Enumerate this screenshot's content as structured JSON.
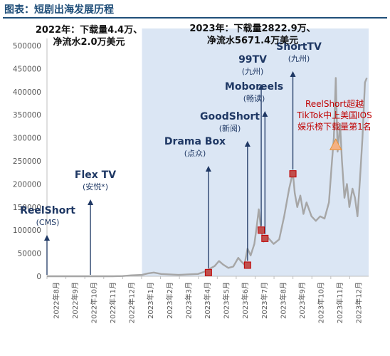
{
  "figure": {
    "title": "图表：短剧出海发展历程"
  },
  "year_notes": [
    {
      "id": "y2022",
      "lines": [
        "2022年：下载量4.4万、",
        "净流水2.0万美元"
      ]
    },
    {
      "id": "y2023",
      "lines": [
        "2023年：下载量2822.9万、",
        "净流水5671.4万美元"
      ]
    }
  ],
  "colors": {
    "shade_2023": "#dbe6f4",
    "line": "#a6a6a6",
    "arrow": "#1f3864",
    "marker": "#c00000",
    "marker_fill": "#c0504d",
    "peak_marker": "#f4b183",
    "title": "#1f4e79",
    "red_text": "#c00000"
  },
  "chart_data": {
    "type": "line",
    "title": "",
    "xlabel": "",
    "ylabel": "",
    "ylim": [
      0,
      500000
    ],
    "yticks": [
      0,
      50000,
      100000,
      150000,
      200000,
      250000,
      300000,
      350000,
      400000,
      450000,
      500000
    ],
    "xticks": [
      "2022年8月",
      "2022年9月",
      "2022年10月",
      "2022年11月",
      "2022年12月",
      "2023年1月",
      "2023年2月",
      "2023年3月",
      "2023年4月",
      "2023年5月",
      "2023年6月",
      "2023年7月",
      "2023年8月",
      "2023年9月",
      "2023年10月",
      "2023年11月",
      "2023年12月"
    ],
    "grid": false,
    "shaded_period": {
      "start": "2023年1月",
      "end": "2023年12月末",
      "meaning": "2023"
    },
    "series": [
      {
        "values": [
          {
            "x": "2022-08-01",
            "y": 0
          },
          {
            "x": "2022-08-15",
            "y": 0
          },
          {
            "x": "2022-09-01",
            "y": 0
          },
          {
            "x": "2022-09-15",
            "y": 0
          },
          {
            "x": "2022-10-01",
            "y": 0
          },
          {
            "x": "2022-10-15",
            "y": 0
          },
          {
            "x": "2022-11-01",
            "y": 0
          },
          {
            "x": "2022-11-15",
            "y": 0
          },
          {
            "x": "2022-12-01",
            "y": 500
          },
          {
            "x": "2022-12-15",
            "y": 2000
          },
          {
            "x": "2023-01-01",
            "y": 3000
          },
          {
            "x": "2023-01-10",
            "y": 6000
          },
          {
            "x": "2023-01-20",
            "y": 8000
          },
          {
            "x": "2023-02-01",
            "y": 5000
          },
          {
            "x": "2023-02-15",
            "y": 4000
          },
          {
            "x": "2023-03-01",
            "y": 3000
          },
          {
            "x": "2023-03-15",
            "y": 4000
          },
          {
            "x": "2023-04-01",
            "y": 5000
          },
          {
            "x": "2023-04-10",
            "y": 9000
          },
          {
            "x": "2023-04-20",
            "y": 16000
          },
          {
            "x": "2023-04-28",
            "y": 22000
          },
          {
            "x": "2023-05-05",
            "y": 33000
          },
          {
            "x": "2023-05-12",
            "y": 25000
          },
          {
            "x": "2023-05-20",
            "y": 18000
          },
          {
            "x": "2023-05-28",
            "y": 21000
          },
          {
            "x": "2023-06-05",
            "y": 40000
          },
          {
            "x": "2023-06-10",
            "y": 32000
          },
          {
            "x": "2023-06-15",
            "y": 25000
          },
          {
            "x": "2023-06-20",
            "y": 60000
          },
          {
            "x": "2023-06-25",
            "y": 45000
          },
          {
            "x": "2023-07-01",
            "y": 70000
          },
          {
            "x": "2023-07-05",
            "y": 110000
          },
          {
            "x": "2023-07-08",
            "y": 145000
          },
          {
            "x": "2023-07-12",
            "y": 100000
          },
          {
            "x": "2023-07-16",
            "y": 75000
          },
          {
            "x": "2023-07-22",
            "y": 85000
          },
          {
            "x": "2023-08-01",
            "y": 70000
          },
          {
            "x": "2023-08-10",
            "y": 80000
          },
          {
            "x": "2023-08-18",
            "y": 130000
          },
          {
            "x": "2023-08-22",
            "y": 160000
          },
          {
            "x": "2023-08-26",
            "y": 190000
          },
          {
            "x": "2023-09-01",
            "y": 225000
          },
          {
            "x": "2023-09-04",
            "y": 180000
          },
          {
            "x": "2023-09-08",
            "y": 150000
          },
          {
            "x": "2023-09-13",
            "y": 175000
          },
          {
            "x": "2023-09-18",
            "y": 135000
          },
          {
            "x": "2023-09-23",
            "y": 160000
          },
          {
            "x": "2023-10-01",
            "y": 130000
          },
          {
            "x": "2023-10-08",
            "y": 120000
          },
          {
            "x": "2023-10-15",
            "y": 130000
          },
          {
            "x": "2023-10-22",
            "y": 125000
          },
          {
            "x": "2023-10-29",
            "y": 160000
          },
          {
            "x": "2023-11-03",
            "y": 250000
          },
          {
            "x": "2023-11-06",
            "y": 300000
          },
          {
            "x": "2023-11-09",
            "y": 430000
          },
          {
            "x": "2023-11-12",
            "y": 270000
          },
          {
            "x": "2023-11-16",
            "y": 330000
          },
          {
            "x": "2023-11-19",
            "y": 250000
          },
          {
            "x": "2023-11-23",
            "y": 170000
          },
          {
            "x": "2023-11-27",
            "y": 200000
          },
          {
            "x": "2023-12-01",
            "y": 150000
          },
          {
            "x": "2023-12-06",
            "y": 190000
          },
          {
            "x": "2023-12-10",
            "y": 170000
          },
          {
            "x": "2023-12-14",
            "y": 130000
          },
          {
            "x": "2023-12-18",
            "y": 210000
          },
          {
            "x": "2023-12-22",
            "y": 300000
          },
          {
            "x": "2023-12-26",
            "y": 420000
          },
          {
            "x": "2023-12-29",
            "y": 430000
          }
        ]
      }
    ],
    "events": [
      {
        "id": "reelshort",
        "name": "ReelShort",
        "sub": "(CMS)",
        "x": "2022-08-01",
        "marker": false
      },
      {
        "id": "flextv",
        "name": "Flex TV",
        "sub": "(安悦*)",
        "x": "2022-10-10",
        "marker": false
      },
      {
        "id": "dramabox",
        "name": "Drama Box",
        "sub": "(点众)",
        "x": "2023-04-18",
        "y": 8000,
        "marker": true
      },
      {
        "id": "goodshort",
        "name": "GoodShort",
        "sub": "(新阅)",
        "x": "2023-06-20",
        "y": 24000,
        "marker": true
      },
      {
        "id": "moboreels",
        "name": "Moboreels",
        "sub": "(畅读)",
        "x": "2023-07-18",
        "y": 82000,
        "marker": true
      },
      {
        "id": "99tv",
        "name": "99TV",
        "sub": "(九州)",
        "x": "2023-07-12",
        "y": 100000,
        "marker": true
      },
      {
        "id": "shorttv",
        "name": "ShortTV",
        "sub": "(九州)",
        "x": "2023-09-01",
        "y": 222000,
        "marker": true
      }
    ],
    "peak_annotation": {
      "x": "2023-11-09",
      "y": 285000,
      "lines": [
        "ReelShort超越",
        "TikTok中上美国IOS",
        "娱乐榜下载量第1名"
      ]
    }
  }
}
